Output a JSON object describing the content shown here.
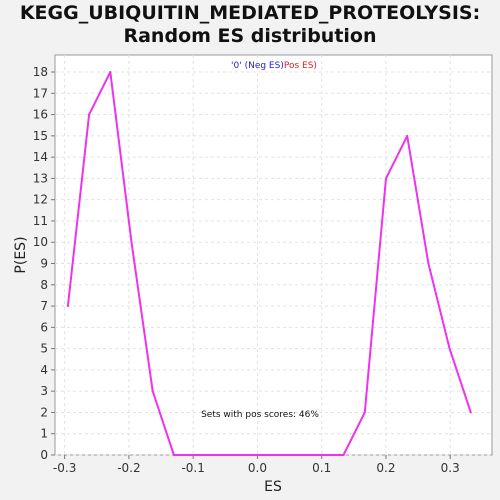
{
  "chart_data": {
    "type": "line",
    "title_line1": "KEGG_UBIQUITIN_MEDIATED_PROTEOLYSIS:",
    "title_line2": "Random ES distribution",
    "xlabel": "ES",
    "ylabel": "P(ES)",
    "xlim": [
      -0.315,
      0.365
    ],
    "ylim": [
      0,
      18.8
    ],
    "xticks": [
      -0.3,
      -0.2,
      -0.1,
      0.0,
      0.1,
      0.2,
      0.3
    ],
    "xtick_labels": [
      "-0.3",
      "-0.2",
      "-0.1",
      "0.0",
      "0.1",
      "0.2",
      "0.3"
    ],
    "yticks": [
      0,
      1,
      2,
      3,
      4,
      5,
      6,
      7,
      8,
      9,
      10,
      11,
      12,
      13,
      14,
      15,
      16,
      17,
      18
    ],
    "grid": true,
    "legend": {
      "placement": "top-center",
      "neg_label": "'0' (Neg ES)",
      "pos_label": "Pos ES)"
    },
    "annotation": "Sets with pos scores: 46%",
    "series": [
      {
        "color": "#ee33ee",
        "x": [
          -0.295,
          -0.262,
          -0.229,
          -0.196,
          -0.163,
          -0.13,
          -0.097,
          -0.064,
          -0.031,
          0.002,
          0.035,
          0.068,
          0.101,
          0.134,
          0.167,
          0.2,
          0.233,
          0.266,
          0.299,
          0.332
        ],
        "y": [
          7,
          16,
          18,
          10,
          3,
          0,
          0,
          0,
          0,
          0,
          0,
          0,
          0,
          0,
          2,
          13,
          15,
          9,
          5,
          2
        ]
      }
    ],
    "colors": {
      "line": "#ee33ee",
      "neg_label": "#2222cc",
      "pos_label": "#dd2222",
      "plot_bg": "#ffffff",
      "grid": "#e2e2e2"
    }
  }
}
